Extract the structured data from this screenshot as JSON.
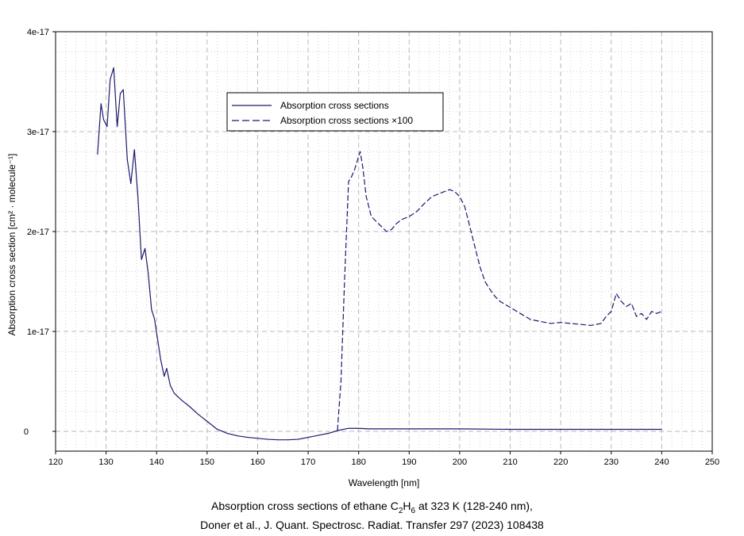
{
  "chart_data": {
    "type": "line",
    "xlabel": "Wavelength [nm]",
    "ylabel": "Absorption cross section [cm² · molecule⁻¹]",
    "xlim": [
      120,
      250
    ],
    "ylim": [
      -2e-18,
      4e-17
    ],
    "x_ticks": [
      "120",
      "130",
      "140",
      "150",
      "160",
      "170",
      "180",
      "190",
      "200",
      "210",
      "220",
      "230",
      "240",
      "250"
    ],
    "y_ticks": [
      "0",
      "1e-17",
      "2e-17",
      "3e-17",
      "4e-17"
    ],
    "grid": true,
    "legend_position": "top-center",
    "line_color": "#1a1a6e",
    "series": [
      {
        "name": "Absorption cross sections",
        "style": "solid",
        "x": [
          128.3,
          129.0,
          129.5,
          130.2,
          130.8,
          131.5,
          132.2,
          132.8,
          133.4,
          134.2,
          134.9,
          135.6,
          136.3,
          137.0,
          137.7,
          138.3,
          139.0,
          139.6,
          140.2,
          140.8,
          141.5,
          142.0,
          142.7,
          143.5,
          145,
          146.5,
          148,
          150,
          152,
          154,
          156,
          158,
          160,
          162,
          164,
          166,
          168,
          170,
          172,
          174,
          176,
          178,
          180,
          182,
          190,
          200,
          210,
          220,
          230,
          240
        ],
        "y": [
          2.77e-17,
          3.28e-17,
          3.12e-17,
          3.05e-17,
          3.52e-17,
          3.64e-17,
          3.05e-17,
          3.38e-17,
          3.42e-17,
          2.72e-17,
          2.48e-17,
          2.82e-17,
          2.35e-17,
          1.72e-17,
          1.83e-17,
          1.6e-17,
          1.22e-17,
          1.12e-17,
          9.2e-18,
          7.2e-18,
          5.5e-18,
          6.3e-18,
          4.6e-18,
          3.8e-18,
          3.1e-18,
          2.5e-18,
          1.8e-18,
          1e-18,
          2e-19,
          -2e-19,
          -4.5e-19,
          -6e-19,
          -7e-19,
          -8e-19,
          -8.5e-19,
          -8.5e-19,
          -8e-19,
          -6e-19,
          -4e-19,
          -2e-19,
          1e-19,
          3e-19,
          3e-19,
          2.5e-19,
          2.5e-19,
          2.5e-19,
          2e-19,
          2e-19,
          2e-19,
          2e-19
        ]
      },
      {
        "name": "Absorption cross sections ×100",
        "style": "dashed",
        "x": [
          175.8,
          176.5,
          177.2,
          178.0,
          178.6,
          179.2,
          179.8,
          180.3,
          180.8,
          181.5,
          182.5,
          183.5,
          184.5,
          185.5,
          186.5,
          187.5,
          188.5,
          190,
          191.5,
          193,
          194.5,
          196,
          197,
          198,
          199,
          200,
          201,
          202,
          203,
          204,
          205,
          206,
          207,
          208,
          210,
          212,
          214,
          216,
          218,
          220,
          222,
          224,
          226,
          228,
          229,
          230,
          231,
          232,
          233,
          234,
          235,
          236,
          237,
          238,
          239,
          240
        ],
        "y": [
          1e-19,
          5e-18,
          1.5e-17,
          2.5e-17,
          2.55e-17,
          2.62e-17,
          2.72e-17,
          2.8e-17,
          2.65e-17,
          2.35e-17,
          2.15e-17,
          2.1e-17,
          2.05e-17,
          2e-17,
          2.02e-17,
          2.08e-17,
          2.12e-17,
          2.15e-17,
          2.2e-17,
          2.28e-17,
          2.35e-17,
          2.38e-17,
          2.4e-17,
          2.42e-17,
          2.4e-17,
          2.35e-17,
          2.25e-17,
          2.05e-17,
          1.85e-17,
          1.65e-17,
          1.5e-17,
          1.42e-17,
          1.35e-17,
          1.3e-17,
          1.24e-17,
          1.18e-17,
          1.12e-17,
          1.1e-17,
          1.08e-17,
          1.09e-17,
          1.08e-17,
          1.07e-17,
          1.06e-17,
          1.08e-17,
          1.15e-17,
          1.2e-17,
          1.38e-17,
          1.3e-17,
          1.25e-17,
          1.28e-17,
          1.15e-17,
          1.18e-17,
          1.12e-17,
          1.2e-17,
          1.18e-17,
          1.2e-17
        ]
      }
    ]
  },
  "caption": {
    "line1": {
      "prefix": "Absorption cross sections of ethane C",
      "sub1": "2",
      "mid": "H",
      "sub2": "6",
      "suffix": " at 323 K (128-240 nm),"
    },
    "line2": "Doner et al., J. Quant. Spectrosc. Radiat. Transfer 297 (2023) 108438"
  }
}
